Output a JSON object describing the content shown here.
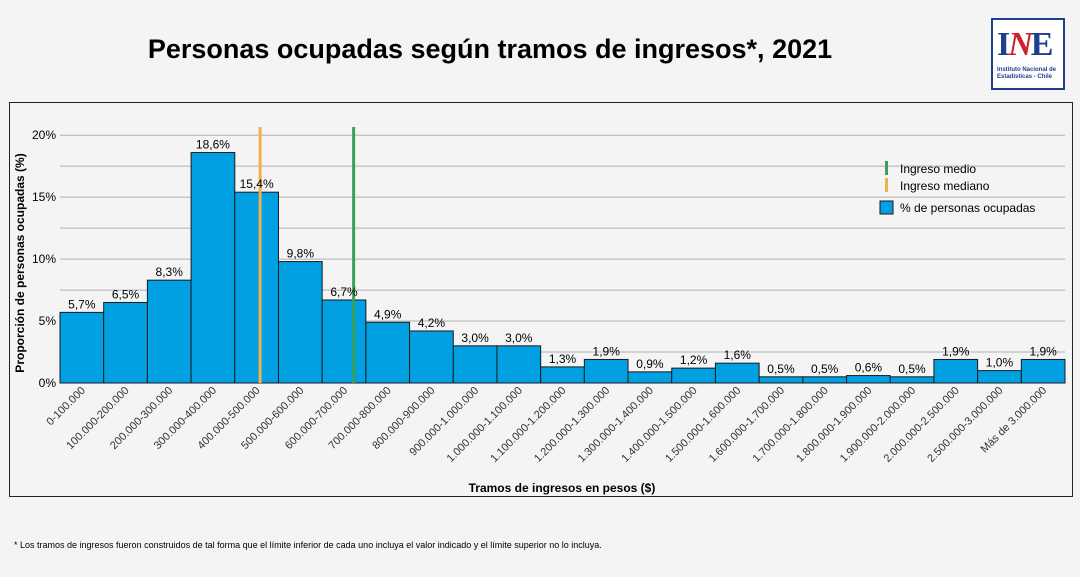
{
  "title": "Personas ocupadas según tramos de ingresos*, 2021",
  "logo": {
    "mark": "INE",
    "text": "Instituto Nacional de Estadísticas - Chile"
  },
  "footnote": "* Los tramos de ingresos fueron construidos de tal forma que el límite inferior de cada uno incluya el valor indicado y el límite superior no lo incluya.",
  "colors": {
    "bar": "#00a0e3",
    "mean_line": "#3aa05a",
    "median_line": "#f0b050",
    "grid": "#b0b0b0"
  },
  "chart_data": {
    "type": "bar",
    "xlabel": "Tramos de ingresos en pesos ($)",
    "ylabel": "Proporción de personas ocupadas (%)",
    "ylim": [
      0,
      20.5
    ],
    "yticks": [
      0,
      5,
      10,
      15,
      20
    ],
    "ytick_labels": [
      "0%",
      "5%",
      "10%",
      "15%",
      "20%"
    ],
    "grid": true,
    "legend_position": "top-right",
    "categories": [
      "0-100.000",
      "100.000-200.000",
      "200.000-300.000",
      "300.000-400.000",
      "400.000-500.000",
      "500.000-600.000",
      "600.000-700.000",
      "700.000-800.000",
      "800.000-900.000",
      "900.000-1.000.000",
      "1.000.000-1.100.000",
      "1.100.000-1.200.000",
      "1.200.000-1.300.000",
      "1.300.000-1.400.000",
      "1.400.000-1.500.000",
      "1.500.000-1.600.000",
      "1.600.000-1.700.000",
      "1.700.000-1.800.000",
      "1.800.000-1.900.000",
      "1.900.000-2.000.000",
      "2.000.000-2.500.000",
      "2.500.000-3.000.000",
      "Más de 3.000.000"
    ],
    "values": [
      5.7,
      6.5,
      8.3,
      18.6,
      15.4,
      9.8,
      6.7,
      4.9,
      4.2,
      3.0,
      3.0,
      1.3,
      1.9,
      0.9,
      1.2,
      1.6,
      0.5,
      0.5,
      0.6,
      0.5,
      1.9,
      1.0,
      1.9
    ],
    "value_labels": [
      "5,7%",
      "6,5%",
      "8,3%",
      "18,6%",
      "15,4%",
      "9,8%",
      "6,7%",
      "4,9%",
      "4,2%",
      "3,0%",
      "3,0%",
      "1,3%",
      "1,9%",
      "0,9%",
      "1,2%",
      "1,6%",
      "0,5%",
      "0,5%",
      "0,6%",
      "0,5%",
      "1,9%",
      "1,0%",
      "1,9%"
    ],
    "series_name": "% de personas ocupadas",
    "reference_lines": [
      {
        "name": "Ingreso medio",
        "category_position": 6.72,
        "color": "#3aa05a"
      },
      {
        "name": "Ingreso mediano",
        "category_position": 4.58,
        "color": "#f0b050"
      }
    ]
  }
}
